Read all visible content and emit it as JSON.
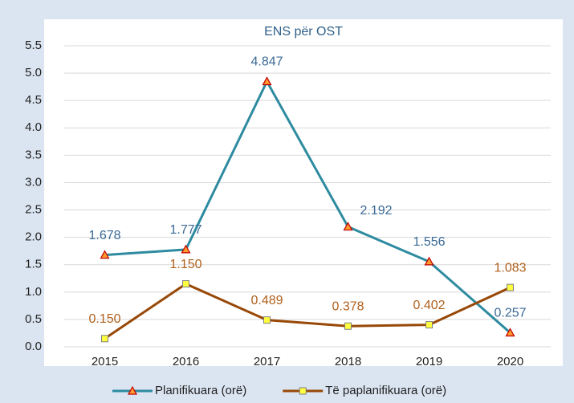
{
  "chart_data": {
    "type": "line",
    "title": "ENS për OST",
    "categories": [
      "2015",
      "2016",
      "2017",
      "2018",
      "2019",
      "2020"
    ],
    "series": [
      {
        "name": "Planifikuara (orë)",
        "color": "#2e8ba0",
        "marker": "triangle",
        "values": [
          1.678,
          1.777,
          4.847,
          2.192,
          1.556,
          0.257
        ],
        "value_labels": [
          "1.678",
          "1.777",
          "4.847",
          "2.192",
          "1.556",
          "0.257"
        ],
        "label_color": "#3a6a96"
      },
      {
        "name": "Të paplanifikuara (orë)",
        "color": "#984807",
        "marker": "square",
        "values": [
          0.15,
          1.15,
          0.489,
          0.378,
          0.402,
          1.083
        ],
        "value_labels": [
          "0.150",
          "1.150",
          "0.489",
          "0.378",
          "0.402",
          "1.083"
        ],
        "label_color": "#b0601c"
      }
    ],
    "ylim": [
      0,
      5.5
    ],
    "yticks": [
      {
        "value": 0,
        "label": "0.0"
      },
      0.5,
      {
        "value": 1,
        "label": "1.0"
      },
      1.5,
      {
        "value": 2,
        "label": "2.0"
      },
      2.5,
      {
        "value": 3,
        "label": "3.0"
      },
      3.5,
      {
        "value": 4,
        "label": "4.0"
      },
      4.5,
      {
        "value": 5,
        "label": "5.0"
      },
      5.5
    ],
    "grid": true,
    "legend": "bottom"
  }
}
